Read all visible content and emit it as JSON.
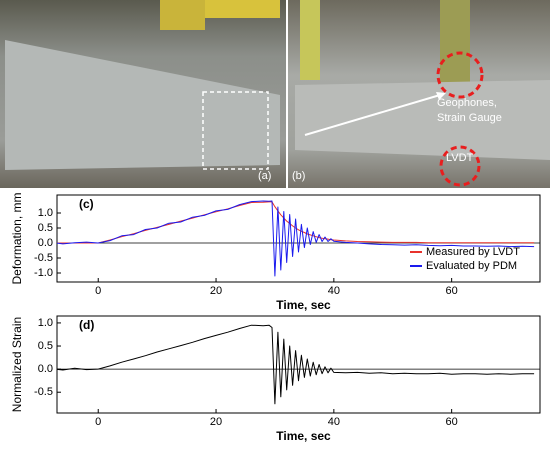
{
  "photos": [
    {
      "label": "(a)"
    },
    {
      "label": "(b)",
      "annotations": [
        "Geophones,",
        "Strain Gauge",
        "LVDT"
      ]
    }
  ],
  "chart_data": [
    {
      "type": "line",
      "panel_label": "(c)",
      "x_label": "Time, sec",
      "y_label": "Deformation, mm",
      "xlim": [
        -7,
        75
      ],
      "xticks": [
        0,
        20,
        40,
        60
      ],
      "ylim": [
        -1.3,
        1.6
      ],
      "yticks": [
        {
          "value": 1,
          "label": "1.0"
        },
        0.5,
        {
          "value": 0,
          "label": "0.0"
        },
        -0.5,
        {
          "value": -1,
          "label": "-1.0"
        }
      ],
      "zero_line": true,
      "legend": "lower right",
      "x": [
        -8,
        -6,
        -4,
        -2,
        0,
        2,
        4,
        6,
        8,
        10,
        12,
        14,
        16,
        18,
        20,
        22,
        24,
        26,
        28,
        29,
        29.5,
        30,
        30.5,
        31,
        31.5,
        32,
        32.5,
        33,
        33.5,
        34,
        34.5,
        35,
        35.5,
        36,
        36.5,
        37,
        37.5,
        38,
        38.5,
        39,
        39.5,
        40,
        42,
        44,
        46,
        48,
        50,
        52,
        54,
        56,
        58,
        60,
        62,
        64,
        66,
        68,
        70,
        72,
        74
      ],
      "series": [
        {
          "name": "Measured by LVDT",
          "color": "#e8322c",
          "values": [
            0,
            0,
            0,
            0,
            0,
            0.1,
            0.21,
            0.31,
            0.42,
            0.52,
            0.62,
            0.73,
            0.83,
            0.94,
            1.04,
            1.14,
            1.25,
            1.35,
            1.36,
            1.37,
            1.37,
            1.21,
            1.07,
            0.94,
            0.83,
            0.73,
            0.65,
            0.57,
            0.5,
            0.44,
            0.39,
            0.35,
            0.3,
            0.27,
            0.24,
            0.21,
            0.18,
            0.16,
            0.14,
            0.13,
            0.11,
            0.1,
            0.07,
            0.05,
            0.04,
            0.03,
            0.02,
            0.02,
            0.02,
            0.01,
            0.01,
            0.01,
            0.01,
            0.01,
            0.01,
            0.01,
            0.01,
            0.01,
            0.01
          ]
        },
        {
          "name": "Evaluated by PDM",
          "color": "#1a1aee",
          "values": [
            0.02,
            -0.03,
            0.01,
            0.03,
            0,
            0.08,
            0.24,
            0.28,
            0.45,
            0.5,
            0.66,
            0.7,
            0.86,
            0.92,
            1.07,
            1.12,
            1.28,
            1.38,
            1.4,
            1.39,
            1.4,
            -1.1,
            1.2,
            -0.9,
            1.05,
            -0.65,
            0.95,
            -0.45,
            0.8,
            -0.3,
            0.62,
            -0.15,
            0.5,
            -0.05,
            0.38,
            0.02,
            0.28,
            0.05,
            0.2,
            0.05,
            0.14,
            0.06,
            0.02,
            0,
            -0.03,
            -0.05,
            -0.06,
            -0.07,
            -0.06,
            -0.08,
            -0.09,
            -0.08,
            -0.1,
            -0.1,
            -0.11,
            -0.1,
            -0.12,
            -0.11,
            -0.12
          ]
        }
      ]
    },
    {
      "type": "line",
      "panel_label": "(d)",
      "x_label": "Time, sec",
      "y_label": "Normalized Strain",
      "xlim": [
        -7,
        75
      ],
      "xticks": [
        0,
        20,
        40,
        60
      ],
      "ylim": [
        -0.95,
        1.15
      ],
      "yticks": [
        {
          "value": 1,
          "label": "1.0"
        },
        0.5,
        {
          "value": 0,
          "label": "0.0"
        },
        -0.5
      ],
      "zero_line": true,
      "x": [
        -8,
        -6,
        -4,
        -2,
        0,
        2,
        4,
        6,
        8,
        10,
        12,
        14,
        16,
        18,
        20,
        22,
        24,
        26,
        28,
        29,
        29.5,
        30,
        30.5,
        31,
        31.5,
        32,
        32.5,
        33,
        33.5,
        34,
        34.5,
        35,
        35.5,
        36,
        36.5,
        37,
        37.5,
        38,
        38.5,
        39,
        39.5,
        40,
        42,
        44,
        46,
        48,
        50,
        52,
        54,
        56,
        58,
        60,
        62,
        64,
        66,
        68,
        70,
        72,
        74
      ],
      "series": [
        {
          "color": "#000000",
          "values": [
            0.01,
            -0.02,
            0.02,
            -0.01,
            0,
            0.07,
            0.15,
            0.22,
            0.29,
            0.37,
            0.44,
            0.51,
            0.58,
            0.66,
            0.73,
            0.8,
            0.88,
            0.95,
            0.94,
            0.95,
            0.9,
            -0.75,
            0.8,
            -0.6,
            0.65,
            -0.45,
            0.5,
            -0.35,
            0.4,
            -0.25,
            0.3,
            -0.18,
            0.22,
            -0.15,
            0.15,
            -0.12,
            0.1,
            -0.1,
            0.05,
            -0.08,
            0.02,
            -0.07,
            -0.08,
            -0.07,
            -0.09,
            -0.08,
            -0.1,
            -0.09,
            -0.1,
            -0.1,
            -0.09,
            -0.11,
            -0.1,
            -0.1,
            -0.11,
            -0.1,
            -0.11,
            -0.1,
            -0.1
          ]
        }
      ]
    }
  ]
}
